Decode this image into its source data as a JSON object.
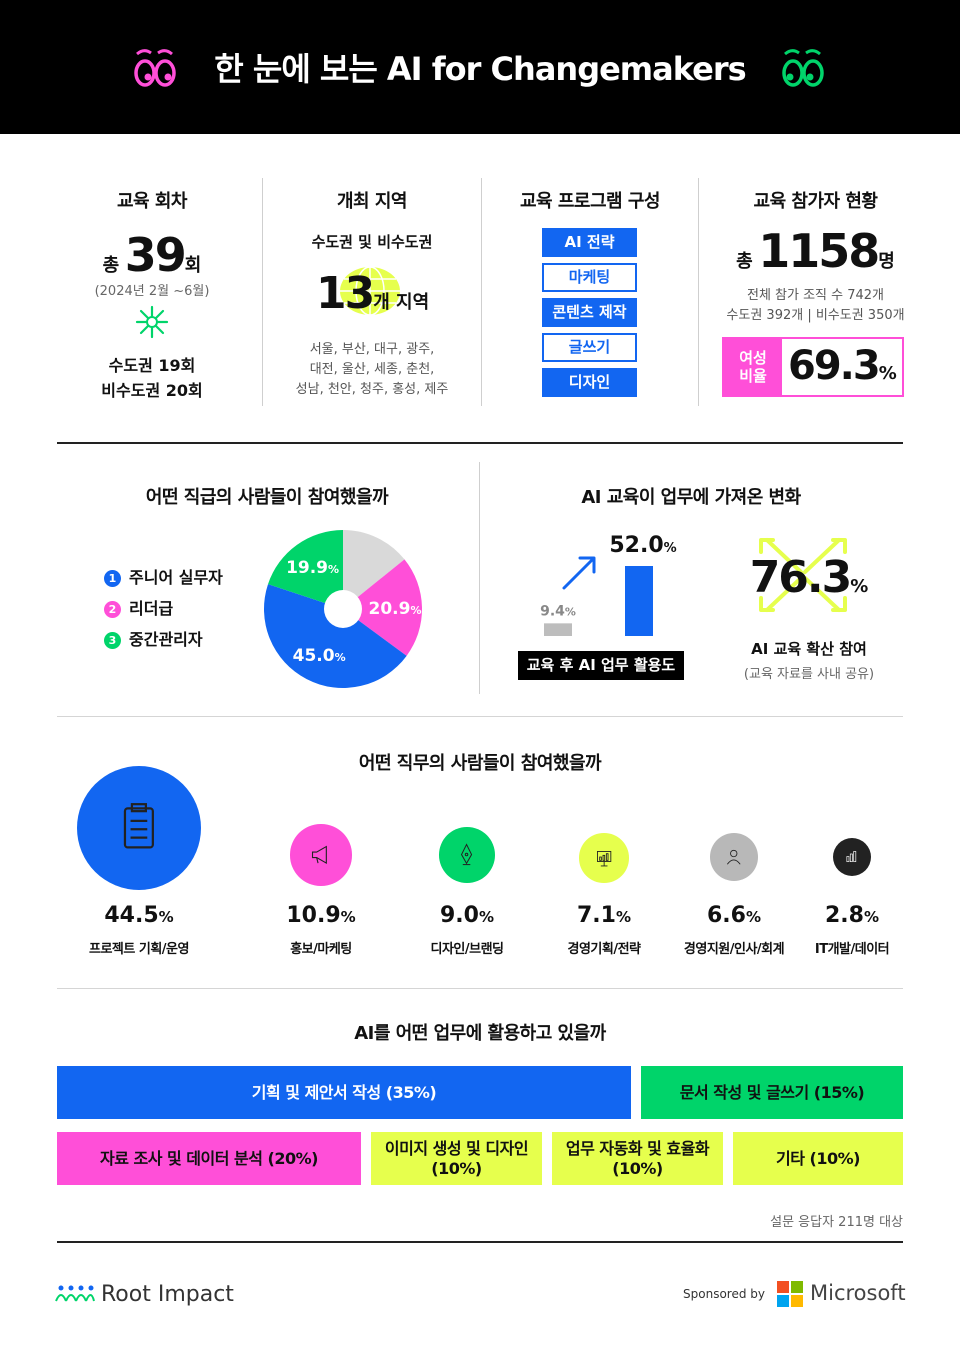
{
  "header": {
    "title": "한 눈에 보는 AI for Changemakers"
  },
  "sessions": {
    "title": "교육 회차",
    "total_prefix": "총",
    "total_value": "39",
    "total_suffix": "회",
    "period": "(2024년 2월 ~6월)",
    "metro": "수도권 19회",
    "non_metro": "비수도권 20회"
  },
  "regions": {
    "title": "개최 지역",
    "subtitle": "수도권 및 비수도권",
    "count": "13",
    "count_suffix": "개 지역",
    "list_line1": "서울, 부산, 대구, 광주,",
    "list_line2": "대전, 울산, 세종, 춘천,",
    "list_line3": "성남, 천안, 청주, 홍성, 제주"
  },
  "program": {
    "title": "교육 프로그램 구성",
    "items": [
      "AI 전략",
      "마케팅",
      "콘텐츠 제작",
      "글쓰기",
      "디자인"
    ]
  },
  "participants": {
    "title": "교육 참가자 현황",
    "total_prefix": "총",
    "total_value": "1158",
    "total_suffix": "명",
    "orgs": "전체 참가 조직 수 742개",
    "orgs_split": "수도권 392개 | 비수도권 350개",
    "female_label_1": "여성",
    "female_label_2": "비율",
    "female_value": "69.3",
    "female_unit": "%"
  },
  "colors": {
    "blue": "#1266f1",
    "pink": "#ff4fd8",
    "green": "#00d46a",
    "lime": "#e6ff4d",
    "grey": "#d9d9d9"
  },
  "chart_data": [
    {
      "type": "pie",
      "title": "어떤 직급의 사람들이 참여했을까",
      "legend": [
        "주니어 실무자",
        "리더급",
        "중간관리자"
      ],
      "legend_numbers": [
        "1",
        "2",
        "3"
      ],
      "slices": [
        {
          "name": "주니어 실무자",
          "value": 45.0,
          "label": "45.0",
          "color": "#1266f1"
        },
        {
          "name": "리더급",
          "value": 20.9,
          "label": "20.9",
          "color": "#ff4fd8"
        },
        {
          "name": "중간관리자",
          "value": 19.9,
          "label": "19.9",
          "color": "#00d46a"
        },
        {
          "name": "",
          "value": 14.2,
          "label": "",
          "color": "#d9d9d9"
        }
      ],
      "unit": "%"
    },
    {
      "type": "bar",
      "title": "AI 교육이 업무에 가져온 변화",
      "categories": [
        "",
        ""
      ],
      "values": [
        9.4,
        52.0
      ],
      "value_labels": [
        "9.4",
        "52.0"
      ],
      "unit": "%",
      "caption": "교육 후 AI 업무 활용도"
    },
    {
      "type": "bar",
      "title": "어떤 직무의 사람들이 참여했을까",
      "categories": [
        "프로젝트 기획/운영",
        "홍보/마케팅",
        "디자인/브랜딩",
        "경영기획/전략",
        "경영지원/인사/회계",
        "IT개발/데이터"
      ],
      "values": [
        44.5,
        10.9,
        9.0,
        7.1,
        6.6,
        2.8
      ],
      "value_labels": [
        "44.5",
        "10.9",
        "9.0",
        "7.1",
        "6.6",
        "2.8"
      ],
      "unit": "%",
      "icons": [
        "clipboard-icon",
        "megaphone-icon",
        "pen-nib-icon",
        "presentation-icon",
        "person-icon",
        "bar-chart-icon"
      ],
      "colors": [
        "#1266f1",
        "#ff4fd8",
        "#00d46a",
        "#e6ff4d",
        "#b8b8b8",
        "#222222"
      ]
    },
    {
      "type": "bar",
      "title": "AI를 어떤 업무에 활용하고 있을까",
      "categories": [
        "기획 및 제안서 작성",
        "문서 작성 및 글쓰기",
        "자료 조사 및 데이터 분석",
        "이미지 생성 및 디자인",
        "업무 자동화 및 효율화",
        "기타"
      ],
      "values": [
        35,
        15,
        20,
        10,
        10,
        10
      ],
      "labels": [
        "기획 및 제안서 작성 (35%)",
        "문서 작성 및 글쓰기 (15%)",
        "자료 조사 및 데이터 분석 (20%)",
        "이미지 생성 및 디자인",
        "업무 자동화 및 효율화",
        "기타 (10%)"
      ],
      "labels_line2": [
        "",
        "",
        "",
        "(10%)",
        "(10%)",
        ""
      ],
      "colors": [
        "#1266f1",
        "#00d46a",
        "#ff4fd8",
        "#e6ff4d",
        "#e6ff4d",
        "#e6ff4d"
      ],
      "note": "설문 응답자 211명 대상"
    }
  ],
  "spread": {
    "value": "76.3",
    "unit": "%",
    "label": "AI 교육 확산 참여",
    "sub": "(교육 자료를 사내 공유)"
  },
  "footer": {
    "brand": "Root Impact",
    "sponsored": "Sponsored by",
    "sponsor": "Microsoft"
  }
}
